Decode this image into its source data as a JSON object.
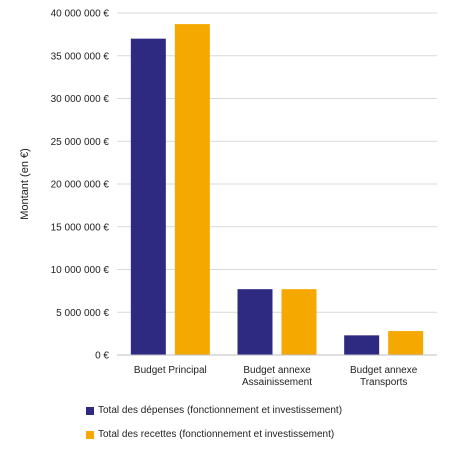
{
  "colors": {
    "depenses": "#2e2a82",
    "recettes": "#f5a800",
    "grid": "#d9d9d9"
  },
  "chart_data": {
    "type": "bar",
    "ylabel": "Montant (en €)",
    "ylim": [
      0,
      40000000
    ],
    "yticks": [
      0,
      5000000,
      10000000,
      15000000,
      20000000,
      25000000,
      30000000,
      35000000,
      40000000
    ],
    "ytick_labels": [
      "0 €",
      "5 000 000 €",
      "10 000 000 €",
      "15 000 000 €",
      "20 000 000 €",
      "25 000 000 €",
      "30 000 000 €",
      "35 000 000 €",
      "40 000 000 €"
    ],
    "categories": [
      [
        "Budget Principal"
      ],
      [
        "Budget annexe",
        "Assainissement"
      ],
      [
        "Budget annexe",
        "Transports"
      ]
    ],
    "grid": true,
    "legend_position": "bottom",
    "series": [
      {
        "name": "Total des dépenses (fonctionnement et investissement)",
        "color_key": "depenses",
        "values": [
          37000000,
          7700000,
          2300000
        ]
      },
      {
        "name": "Total des recettes (fonctionnement et investissement)",
        "color_key": "recettes",
        "values": [
          38700000,
          7700000,
          2800000
        ]
      }
    ]
  }
}
